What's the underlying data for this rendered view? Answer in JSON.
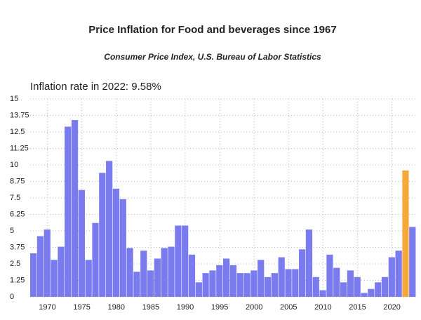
{
  "chart_data": {
    "type": "bar",
    "title": "Price Inflation for Food and beverages since 1967",
    "subtitle": "Consumer Price Index, U.S. Bureau of Labor Statistics",
    "annotation": "Inflation rate in 2022: 9.58%",
    "categories": [
      "1968",
      "1969",
      "1970",
      "1971",
      "1972",
      "1973",
      "1974",
      "1975",
      "1976",
      "1977",
      "1978",
      "1979",
      "1980",
      "1981",
      "1982",
      "1983",
      "1984",
      "1985",
      "1986",
      "1987",
      "1988",
      "1989",
      "1990",
      "1991",
      "1992",
      "1993",
      "1994",
      "1995",
      "1996",
      "1997",
      "1998",
      "1999",
      "2000",
      "2001",
      "2002",
      "2003",
      "2004",
      "2005",
      "2006",
      "2007",
      "2008",
      "2009",
      "2010",
      "2011",
      "2012",
      "2013",
      "2014",
      "2015",
      "2016",
      "2017",
      "2018",
      "2019",
      "2020",
      "2021",
      "2022",
      "2023"
    ],
    "values": [
      3.3,
      4.6,
      5.1,
      2.8,
      3.8,
      12.9,
      13.4,
      8.1,
      2.8,
      5.6,
      9.4,
      10.3,
      8.2,
      7.4,
      3.7,
      1.9,
      3.5,
      2.0,
      2.9,
      3.7,
      3.8,
      5.4,
      5.4,
      3.2,
      1.1,
      1.8,
      2.0,
      2.4,
      2.9,
      2.4,
      1.8,
      1.8,
      2.0,
      2.8,
      1.5,
      1.8,
      3.0,
      2.1,
      2.1,
      3.6,
      5.1,
      1.5,
      0.5,
      3.2,
      2.2,
      1.1,
      2.0,
      1.5,
      0.3,
      0.6,
      1.1,
      1.5,
      3.0,
      3.5,
      9.58,
      5.3
    ],
    "color": "#7b7bf0",
    "highlight_category": "2022",
    "highlight_color": "#f5a93a",
    "xticks": [
      "1970",
      "1975",
      "1980",
      "1985",
      "1990",
      "1995",
      "2000",
      "2005",
      "2010",
      "2015",
      "2020"
    ],
    "ylim": [
      0,
      15
    ],
    "yticks": [
      0,
      1.25,
      2.5,
      3.75,
      5,
      6.25,
      7.5,
      8.75,
      10,
      11.25,
      12.5,
      13.75,
      15
    ],
    "grid": true
  }
}
